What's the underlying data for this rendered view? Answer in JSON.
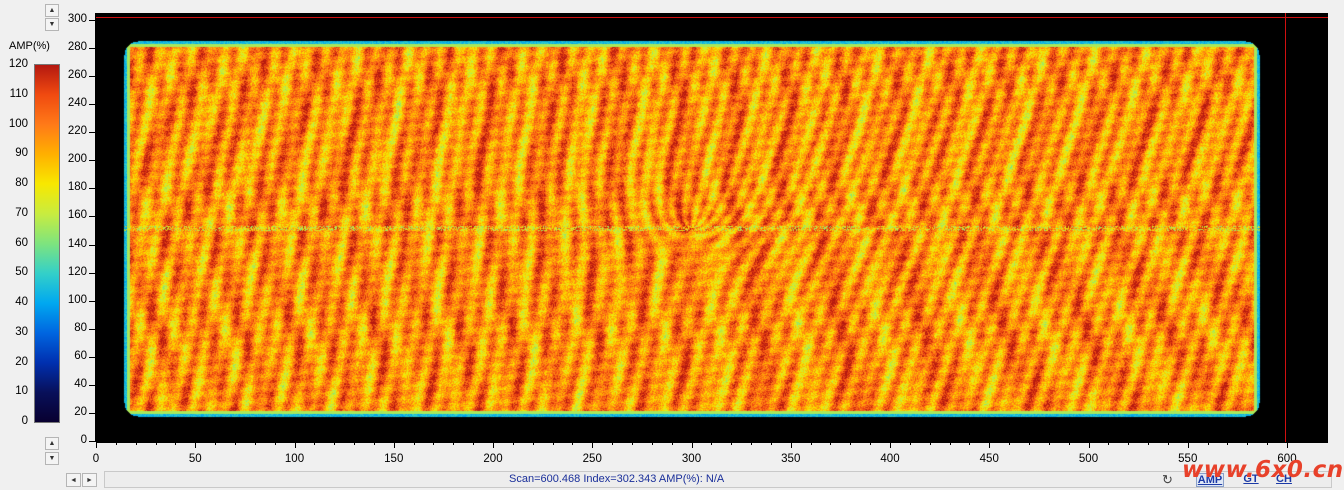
{
  "colorbar": {
    "label": "AMP(%)",
    "ticks": [
      "120",
      "110",
      "100",
      "90",
      "80",
      "70",
      "60",
      "50",
      "40",
      "30",
      "20",
      "10",
      "0"
    ],
    "colors": [
      "#080030",
      "#08105a",
      "#0030b0",
      "#0066e0",
      "#00a8f0",
      "#34d0c8",
      "#7ee47e",
      "#c8ec40",
      "#f8e800",
      "#ffb000",
      "#ff7a18",
      "#f04a10",
      "#b41810"
    ]
  },
  "y_axis": {
    "ticks": [
      "300",
      "280",
      "260",
      "240",
      "220",
      "200",
      "180",
      "160",
      "140",
      "120",
      "100",
      "80",
      "60",
      "40",
      "20",
      "0"
    ]
  },
  "x_axis": {
    "ticks": [
      "0",
      "50",
      "100",
      "150",
      "200",
      "250",
      "300",
      "350",
      "400",
      "450",
      "500",
      "550",
      "600"
    ]
  },
  "cursor": {
    "scan": 600.468,
    "index": 302.343
  },
  "status": {
    "text": "Scan=600.468 Index=302.343  AMP(%): N/A"
  },
  "tabs": {
    "amp": "AMP",
    "gt": "GT",
    "ch": "CH"
  },
  "watermark": "www.6x0.cn",
  "icons": {
    "spin_up": "arrow-up",
    "spin_down": "arrow-down",
    "scroll_left": "arrow-left",
    "scroll_right": "arrow-right",
    "refresh": "refresh"
  }
}
